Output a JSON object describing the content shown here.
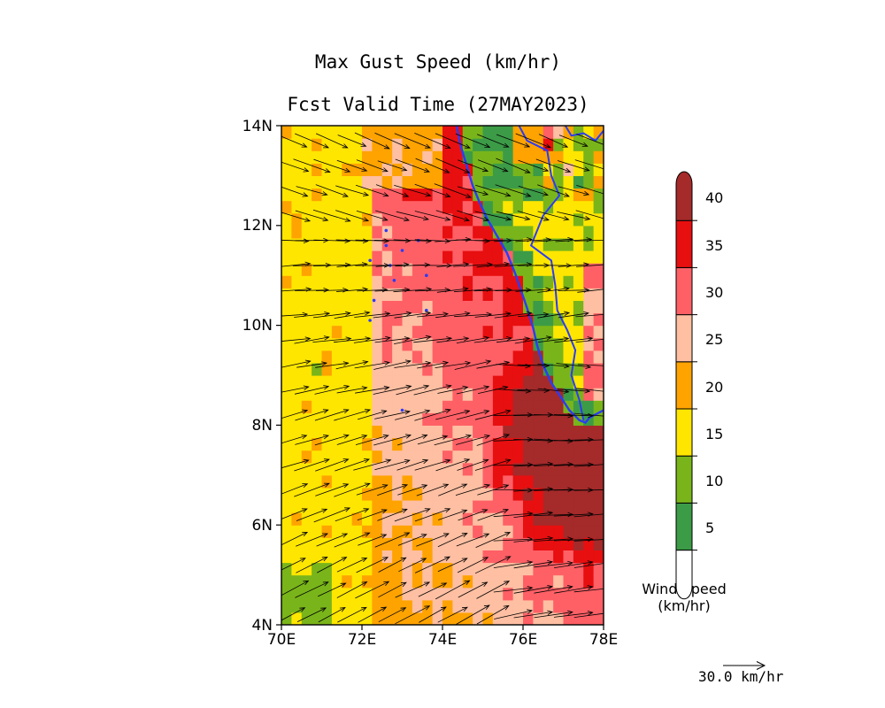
{
  "title": "Max Gust Speed (km/hr)",
  "subtitle": "Fcst Valid Time (27MAY2023)",
  "map": {
    "lon_range": [
      70,
      78
    ],
    "lat_range": [
      4,
      14
    ],
    "x_ticks": [
      "70E",
      "72E",
      "74E",
      "76E",
      "78E"
    ],
    "y_ticks": [
      "4N",
      "6N",
      "8N",
      "10N",
      "12N",
      "14N"
    ],
    "coastline_color": "#2b3cf5",
    "land_region": "SW India (Kerala) coast and southern tip; Lakshadweep islands near 72-74E, 10-12N"
  },
  "colorbar": {
    "title_line1": "Wind Speed",
    "title_line2": "(km/hr)",
    "levels": [
      "5",
      "10",
      "15",
      "20",
      "25",
      "30",
      "35",
      "40"
    ],
    "colors": [
      "#ffffff",
      "#3c9b47",
      "#79b51a",
      "#ffe600",
      "#ffa300",
      "#ffbfa2",
      "#ff6066",
      "#e80f10",
      "#a52a2a"
    ]
  },
  "vector_reference": {
    "label": "30.0 km/hr"
  }
}
